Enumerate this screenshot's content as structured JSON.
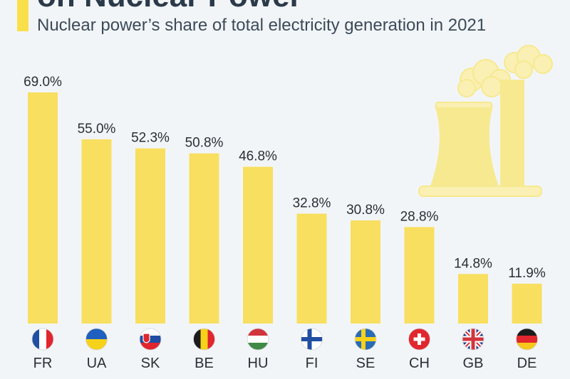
{
  "header": {
    "title": "on Nuclear Power",
    "subtitle": "Nuclear power’s share of total electricity generation in 2021"
  },
  "colors": {
    "bar": "#f8df5f",
    "accent": "#f9e04b",
    "illustration": "#f7e98f",
    "illustration_light": "#faf0b3",
    "background": "#f2f5f8"
  },
  "illustration": {
    "icon": "nuclear-cooling-tower-icon"
  },
  "chart_data": {
    "type": "bar",
    "title": "Nuclear power’s share of total electricity generation in 2021",
    "xlabel": "",
    "ylabel": "",
    "ylim": [
      0,
      70
    ],
    "grid": false,
    "categories": [
      "FR",
      "UA",
      "SK",
      "BE",
      "HU",
      "FI",
      "SE",
      "CH",
      "GB",
      "DE"
    ],
    "values": [
      69.0,
      55.0,
      52.3,
      50.8,
      46.8,
      32.8,
      30.8,
      28.8,
      14.8,
      11.9
    ],
    "value_labels": [
      "69.0%",
      "55.0%",
      "52.3%",
      "50.8%",
      "46.8%",
      "32.8%",
      "30.8%",
      "28.8%",
      "14.8%",
      "11.9%"
    ],
    "flag_icons": [
      "france-flag-icon",
      "ukraine-flag-icon",
      "slovakia-flag-icon",
      "belgium-flag-icon",
      "hungary-flag-icon",
      "finland-flag-icon",
      "sweden-flag-icon",
      "switzerland-flag-icon",
      "uk-flag-icon",
      "germany-flag-icon"
    ]
  }
}
